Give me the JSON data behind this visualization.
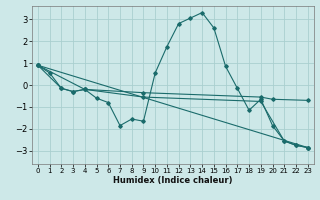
{
  "xlabel": "Humidex (Indice chaleur)",
  "ylabel": "",
  "bg_color": "#cde8e8",
  "grid_color": "#aacfcf",
  "line_color": "#1a6b6b",
  "xlim": [
    -0.5,
    23.5
  ],
  "ylim": [
    -3.6,
    3.6
  ],
  "xticks": [
    0,
    1,
    2,
    3,
    4,
    5,
    6,
    7,
    8,
    9,
    10,
    11,
    12,
    13,
    14,
    15,
    16,
    17,
    18,
    19,
    20,
    21,
    22,
    23
  ],
  "yticks": [
    -3,
    -2,
    -1,
    0,
    1,
    2,
    3
  ],
  "line1_x": [
    0,
    1,
    2,
    3,
    4,
    5,
    6,
    7,
    8,
    9,
    10,
    11,
    12,
    13,
    14,
    15,
    16,
    17,
    18,
    19,
    20,
    21,
    22,
    23
  ],
  "line1_y": [
    0.9,
    0.55,
    -0.15,
    -0.3,
    -0.2,
    -0.6,
    -0.8,
    -1.85,
    -1.55,
    -1.65,
    0.55,
    1.75,
    2.8,
    3.05,
    3.3,
    2.6,
    0.85,
    -0.15,
    -1.15,
    -0.65,
    -1.85,
    -2.55,
    -2.75,
    -2.85
  ],
  "line2_x": [
    0,
    2,
    3,
    4,
    9,
    19,
    20,
    23
  ],
  "line2_y": [
    0.9,
    -0.15,
    -0.3,
    -0.2,
    -0.35,
    -0.55,
    -0.65,
    -0.7
  ],
  "line3_x": [
    0,
    4,
    9,
    19,
    21,
    22,
    23
  ],
  "line3_y": [
    0.9,
    -0.2,
    -0.55,
    -0.75,
    -2.55,
    -2.75,
    -2.85
  ],
  "line4_x": [
    0,
    23
  ],
  "line4_y": [
    0.9,
    -2.85
  ]
}
